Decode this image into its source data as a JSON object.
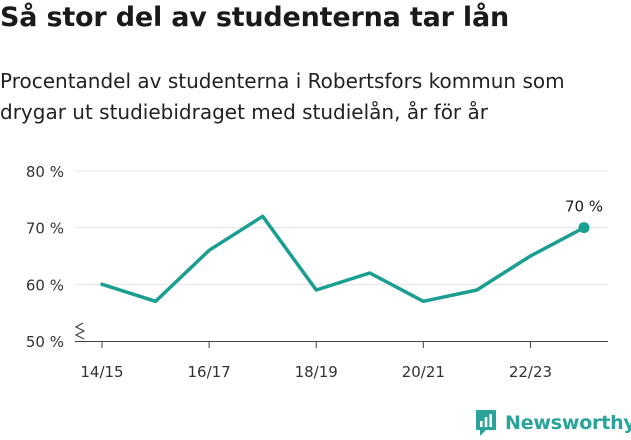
{
  "title": "Så stor del av studenterna tar lån",
  "subtitle": "Procentandel av studenterna i Robertsfors kommun som drygar ut studiebidraget med studielån, år för år",
  "brand": {
    "name": "Newsworthy",
    "color": "#2aa39a",
    "icon": "newsworthy-logo-icon"
  },
  "chart_data": {
    "type": "line",
    "x": [
      "14/15",
      "15/16",
      "16/17",
      "17/18",
      "18/19",
      "19/20",
      "20/21",
      "21/22",
      "22/23",
      "23/24"
    ],
    "x_tick_labels": [
      "14/15",
      "16/17",
      "18/19",
      "20/21",
      "22/23"
    ],
    "series": [
      {
        "values": [
          60,
          57,
          66,
          72,
          59,
          62,
          57,
          59,
          65,
          70
        ],
        "color": "#1a9e91"
      }
    ],
    "y_ticks": [
      50,
      60,
      70,
      80
    ],
    "y_tick_labels": [
      "50 %",
      "60 %",
      "70 %",
      "80 %"
    ],
    "ylim": [
      50,
      80
    ],
    "y_axis_break": true,
    "last_point_label": "70 %",
    "grid": true
  }
}
